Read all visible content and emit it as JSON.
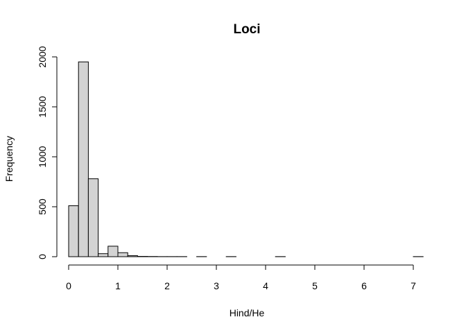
{
  "chart_data": {
    "type": "bar",
    "title": "Loci",
    "xlabel": "Hind/He",
    "ylabel": "Frequency",
    "bin_width": 0.2,
    "bin_starts": [
      0.0,
      0.2,
      0.4,
      0.6,
      0.8,
      1.0,
      1.2,
      1.4,
      1.6,
      1.8,
      2.0,
      2.2,
      2.4,
      2.6,
      2.8,
      3.0,
      3.2,
      3.4,
      3.6,
      3.8,
      4.0,
      4.2,
      4.4,
      4.6,
      4.8,
      5.0,
      5.2,
      5.4,
      5.6,
      5.8,
      6.0,
      6.2,
      6.4,
      6.6,
      6.8,
      7.0
    ],
    "values": [
      510,
      1950,
      780,
      30,
      105,
      40,
      10,
      3,
      2,
      1,
      1,
      1,
      0,
      1,
      0,
      0,
      1,
      0,
      0,
      0,
      0,
      1,
      0,
      0,
      0,
      0,
      0,
      0,
      0,
      0,
      0,
      0,
      0,
      0,
      0,
      1
    ],
    "xlim": [
      0,
      7.2
    ],
    "ylim": [
      0,
      2000
    ],
    "xticks": [
      "0",
      "1",
      "2",
      "3",
      "4",
      "5",
      "6",
      "7"
    ],
    "yticks": [
      "0",
      "500",
      "1000",
      "1500",
      "2000"
    ],
    "bar_color": "#d3d3d3",
    "grid": false,
    "legend": "none"
  }
}
